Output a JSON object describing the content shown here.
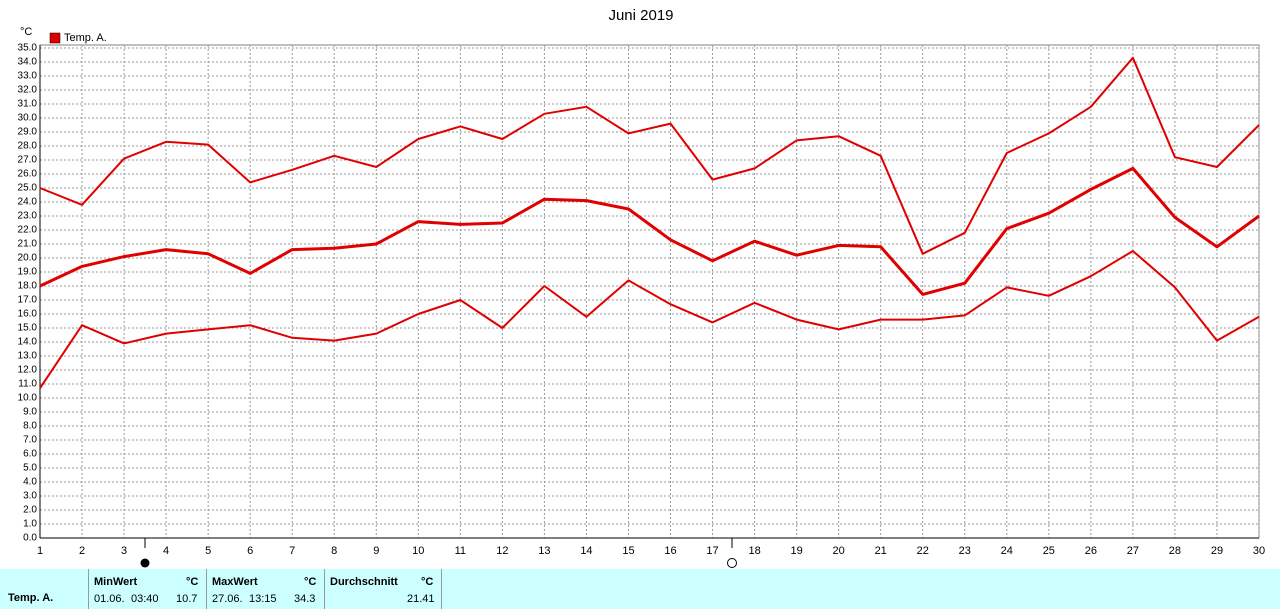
{
  "chart_data": {
    "type": "line",
    "title": "Juni 2019",
    "y_unit": "°C",
    "legend": "Temp. A.",
    "grid": true,
    "x": [
      1,
      2,
      3,
      4,
      5,
      6,
      7,
      8,
      9,
      10,
      11,
      12,
      13,
      14,
      15,
      16,
      17,
      18,
      19,
      20,
      21,
      22,
      23,
      24,
      25,
      26,
      27,
      28,
      29,
      30
    ],
    "xlim": [
      1,
      30
    ],
    "xticks": [
      1,
      2,
      3,
      4,
      5,
      6,
      7,
      8,
      9,
      10,
      11,
      12,
      13,
      14,
      15,
      16,
      17,
      18,
      19,
      20,
      21,
      22,
      23,
      24,
      25,
      26,
      27,
      28,
      29,
      30
    ],
    "ylim": [
      0,
      35
    ],
    "yticks": [
      {
        "value": 0,
        "label": "0.0"
      },
      {
        "value": 1,
        "label": "1.0"
      },
      {
        "value": 2,
        "label": "2.0"
      },
      {
        "value": 3,
        "label": "3.0"
      },
      {
        "value": 4,
        "label": "4.0"
      },
      {
        "value": 5,
        "label": "5.0"
      },
      {
        "value": 6,
        "label": "6.0"
      },
      {
        "value": 7,
        "label": "7.0"
      },
      {
        "value": 8,
        "label": "8.0"
      },
      {
        "value": 9,
        "label": "9.0"
      },
      {
        "value": 10,
        "label": "10.0"
      },
      {
        "value": 11,
        "label": "11.0"
      },
      {
        "value": 12,
        "label": "12.0"
      },
      {
        "value": 13,
        "label": "13.0"
      },
      {
        "value": 14,
        "label": "14.0"
      },
      {
        "value": 15,
        "label": "15.0"
      },
      {
        "value": 16,
        "label": "16.0"
      },
      {
        "value": 17,
        "label": "17.0"
      },
      {
        "value": 18,
        "label": "18.0"
      },
      {
        "value": 19,
        "label": "19.0"
      },
      {
        "value": 20,
        "label": "20.0"
      },
      {
        "value": 21,
        "label": "21.0"
      },
      {
        "value": 22,
        "label": "22.0"
      },
      {
        "value": 23,
        "label": "23.0"
      },
      {
        "value": 24,
        "label": "24.0"
      },
      {
        "value": 25,
        "label": "25.0"
      },
      {
        "value": 26,
        "label": "26.0"
      },
      {
        "value": 27,
        "label": "27.0"
      },
      {
        "value": 28,
        "label": "28.0"
      },
      {
        "value": 29,
        "label": "29.0"
      },
      {
        "value": 30,
        "label": "30.0"
      },
      {
        "value": 31,
        "label": "31.0"
      },
      {
        "value": 32,
        "label": "32.0"
      },
      {
        "value": 33,
        "label": "33.0"
      },
      {
        "value": 34,
        "label": "34.0"
      },
      {
        "value": 35,
        "label": "35.0"
      }
    ],
    "series": [
      {
        "color": "#e00000",
        "width": 2,
        "values": [
          25.0,
          23.8,
          27.1,
          28.3,
          28.1,
          25.4,
          26.3,
          27.3,
          26.5,
          28.5,
          29.4,
          28.5,
          30.3,
          30.8,
          28.9,
          29.6,
          25.6,
          26.4,
          28.4,
          28.7,
          27.3,
          20.3,
          21.8,
          27.5,
          28.9,
          30.8,
          34.3,
          27.2,
          26.5,
          29.5
        ]
      },
      {
        "color": "#e00000",
        "width": 3,
        "values": [
          18.0,
          19.4,
          20.1,
          20.6,
          20.3,
          18.9,
          20.6,
          20.7,
          21.0,
          22.6,
          22.4,
          22.5,
          24.2,
          24.1,
          23.5,
          21.3,
          19.8,
          21.2,
          20.2,
          20.9,
          20.8,
          17.4,
          18.2,
          22.1,
          23.2,
          24.9,
          26.4,
          22.9,
          20.8,
          23.0
        ]
      },
      {
        "color": "#e00000",
        "width": 2,
        "values": [
          10.7,
          15.2,
          13.9,
          14.6,
          14.9,
          15.2,
          14.3,
          14.1,
          14.6,
          16.0,
          17.0,
          15.0,
          18.0,
          15.8,
          18.4,
          16.7,
          15.4,
          16.8,
          15.6,
          14.9,
          15.6,
          15.6,
          15.9,
          17.9,
          17.3,
          18.7,
          20.5,
          17.9,
          14.1,
          15.8
        ]
      }
    ]
  },
  "summary": {
    "row_label": "Temp. A.",
    "min": {
      "header": "MinWert",
      "unit": "°C",
      "date": "01.06.",
      "time": "03:40",
      "value": 10.7
    },
    "max": {
      "header": "MaxWert",
      "unit": "°C",
      "date": "27.06.",
      "time": "13:15",
      "value": 34.3
    },
    "avg": {
      "header": "Durchschnitt",
      "unit": "°C",
      "value": 21.41
    }
  }
}
